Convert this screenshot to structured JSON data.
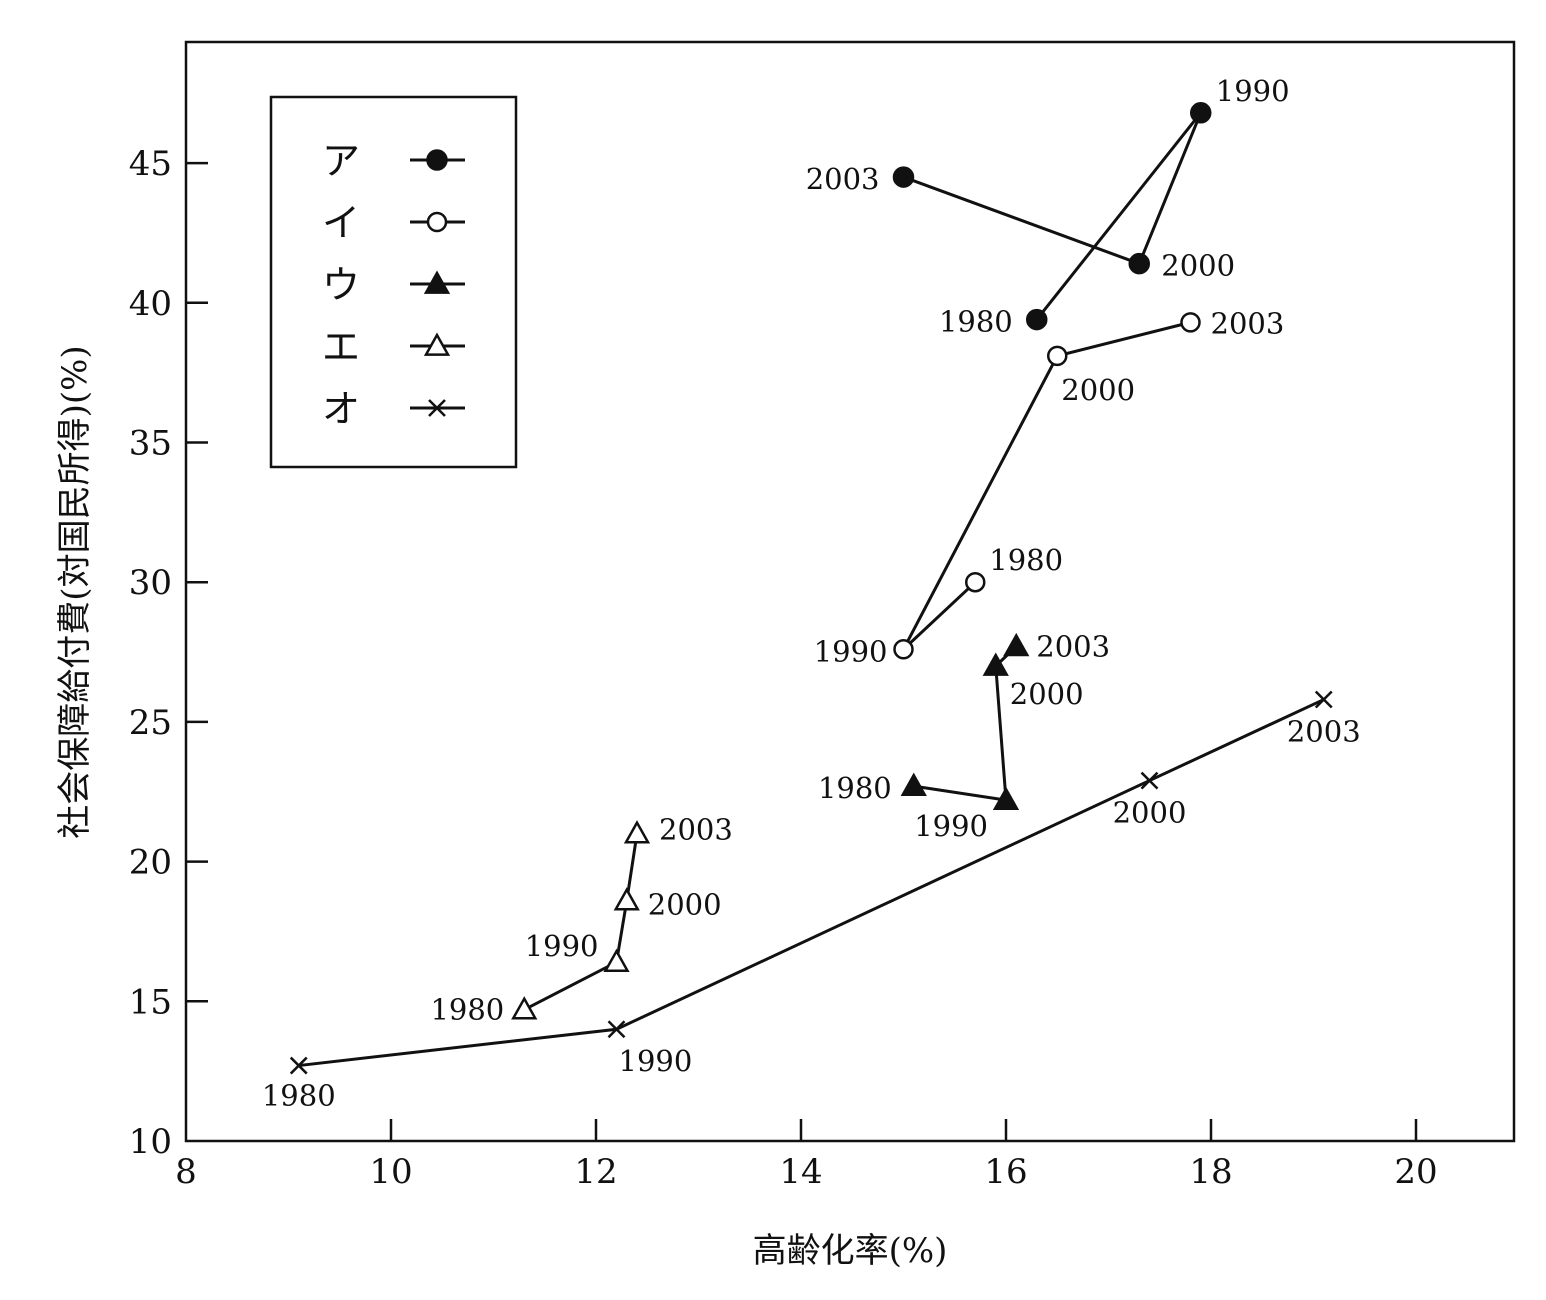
{
  "chart_data": {
    "type": "scatter",
    "xlabel": "高齢化率(%)",
    "ylabel": "社会保障給付費(対国民所得)(%)",
    "xlim": [
      8,
      21
    ],
    "ylim": [
      10,
      48
    ],
    "xticks": [
      8,
      10,
      12,
      14,
      16,
      18,
      20
    ],
    "yticks": [
      10,
      15,
      20,
      25,
      30,
      35,
      40,
      45
    ],
    "legend_position": "top-left",
    "series": [
      {
        "name": "ア",
        "marker": "filled-circle",
        "points": [
          {
            "label": "1980",
            "x": 16.3,
            "y": 39.4
          },
          {
            "label": "1990",
            "x": 17.9,
            "y": 46.8
          },
          {
            "label": "2000",
            "x": 17.3,
            "y": 41.4
          },
          {
            "label": "2003",
            "x": 15.0,
            "y": 44.5
          }
        ]
      },
      {
        "name": "イ",
        "marker": "open-circle",
        "points": [
          {
            "label": "1980",
            "x": 15.7,
            "y": 30.0
          },
          {
            "label": "1990",
            "x": 15.0,
            "y": 27.6
          },
          {
            "label": "2000",
            "x": 16.5,
            "y": 38.1
          },
          {
            "label": "2003",
            "x": 17.8,
            "y": 39.3
          }
        ]
      },
      {
        "name": "ウ",
        "marker": "filled-triangle",
        "points": [
          {
            "label": "1980",
            "x": 15.1,
            "y": 22.7
          },
          {
            "label": "1990",
            "x": 16.0,
            "y": 22.2
          },
          {
            "label": "2000",
            "x": 15.9,
            "y": 27.0
          },
          {
            "label": "2003",
            "x": 16.1,
            "y": 27.7
          }
        ]
      },
      {
        "name": "エ",
        "marker": "open-triangle",
        "points": [
          {
            "label": "1980",
            "x": 11.3,
            "y": 14.7
          },
          {
            "label": "1990",
            "x": 12.2,
            "y": 16.4
          },
          {
            "label": "2000",
            "x": 12.3,
            "y": 18.6
          },
          {
            "label": "2003",
            "x": 12.4,
            "y": 21.0
          }
        ]
      },
      {
        "name": "オ",
        "marker": "cross",
        "points": [
          {
            "label": "1980",
            "x": 9.1,
            "y": 12.7
          },
          {
            "label": "1990",
            "x": 12.2,
            "y": 14.0
          },
          {
            "label": "2000",
            "x": 17.4,
            "y": 22.9
          },
          {
            "label": "2003",
            "x": 19.1,
            "y": 25.8
          }
        ]
      }
    ]
  }
}
